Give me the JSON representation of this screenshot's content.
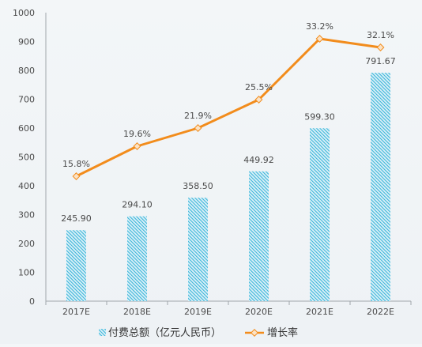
{
  "chart_data": {
    "type": "bar",
    "categories": [
      "2017E",
      "2018E",
      "2019E",
      "2020E",
      "2021E",
      "2022E"
    ],
    "y_ticks": [
      "0",
      "100",
      "200",
      "300",
      "400",
      "500",
      "600",
      "700",
      "800",
      "900",
      "1000"
    ],
    "ylim": [
      0,
      1000
    ],
    "y2lim": [
      0.0,
      36.5
    ],
    "grid": false,
    "legend_position": "bottom-center",
    "series": [
      {
        "name": "付费总额（亿元人民币）",
        "type": "bar",
        "axis": "left",
        "color": "#34b4d8",
        "values": [
          245.9,
          294.1,
          358.5,
          449.92,
          599.3,
          791.67
        ],
        "labels": [
          "245.90",
          "294.10",
          "358.50",
          "449.92",
          "599.30",
          "791.67"
        ]
      },
      {
        "name": "增长率",
        "type": "line",
        "axis": "right",
        "color": "#f28c1c",
        "values": [
          15.8,
          19.6,
          21.9,
          25.5,
          33.2,
          32.1
        ],
        "labels": [
          "15.8%",
          "19.6%",
          "21.9%",
          "25.5%",
          "33.2%",
          "32.1%"
        ]
      }
    ]
  }
}
